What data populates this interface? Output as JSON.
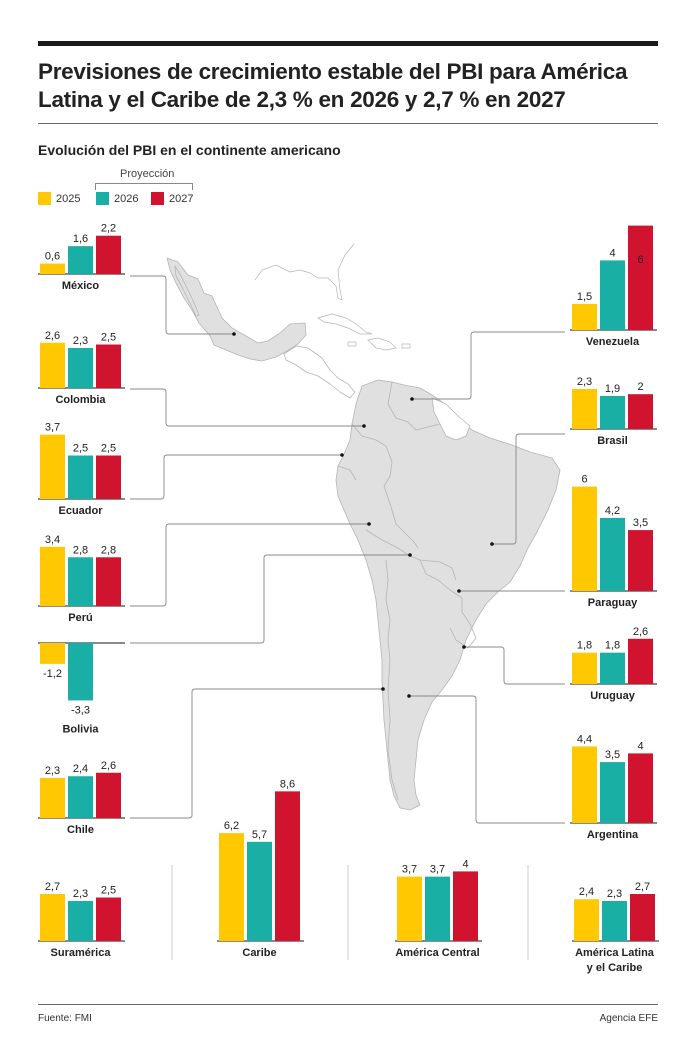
{
  "header": {
    "title_line1": "Previsiones de crecimiento estable del PBI para América",
    "title_line2": "Latina y el Caribe de 2,3 % en 2026 y 2,7 % en 2027",
    "subtitle": "Evolución del PBI en el continente americano"
  },
  "legend": {
    "projection_label": "Proyección",
    "items": [
      {
        "label": "2025",
        "color": "#FFC800"
      },
      {
        "label": "2026",
        "color": "#1AAFA5"
      },
      {
        "label": "2027",
        "color": "#D0142F"
      }
    ]
  },
  "footer": {
    "source": "Fuente: FMI",
    "agency": "Agencia EFE"
  },
  "chart_data": {
    "type": "bar",
    "title": "Evolución del PBI en el continente americano",
    "series_names": [
      "2025",
      "2026",
      "2027"
    ],
    "series_colors": [
      "#FFC800",
      "#1AAFA5",
      "#D0142F"
    ],
    "groups": [
      {
        "name": "México",
        "values": [
          0.6,
          1.6,
          2.2
        ],
        "labels": [
          "0,6",
          "1,6",
          "2,2"
        ]
      },
      {
        "name": "Colombia",
        "values": [
          2.6,
          2.3,
          2.5
        ],
        "labels": [
          "2,6",
          "2,3",
          "2,5"
        ]
      },
      {
        "name": "Ecuador",
        "values": [
          3.7,
          2.5,
          2.5
        ],
        "labels": [
          "3,7",
          "2,5",
          "2,5"
        ]
      },
      {
        "name": "Perú",
        "values": [
          3.4,
          2.8,
          2.8
        ],
        "labels": [
          "3,4",
          "2,8",
          "2,8"
        ]
      },
      {
        "name": "Bolivia",
        "values": [
          -1.2,
          -3.3,
          null
        ],
        "labels": [
          "-1,2",
          "-3,3",
          ""
        ]
      },
      {
        "name": "Chile",
        "values": [
          2.3,
          2.4,
          2.6
        ],
        "labels": [
          "2,3",
          "2,4",
          "2,6"
        ]
      },
      {
        "name": "Suramérica",
        "values": [
          2.7,
          2.3,
          2.5
        ],
        "labels": [
          "2,7",
          "2,3",
          "2,5"
        ]
      },
      {
        "name": "Caribe",
        "values": [
          6.2,
          5.7,
          8.6
        ],
        "labels": [
          "6,2",
          "5,7",
          "8,6"
        ]
      },
      {
        "name": "América Central",
        "values": [
          3.7,
          3.7,
          4
        ],
        "labels": [
          "3,7",
          "3,7",
          "4"
        ]
      },
      {
        "name": "América Latina y el Caribe",
        "name_lines": [
          "América Latina",
          "y el Caribe"
        ],
        "values": [
          2.4,
          2.3,
          2.7
        ],
        "labels": [
          "2,4",
          "2,3",
          "2,7"
        ]
      },
      {
        "name": "Venezuela",
        "values": [
          1.5,
          4,
          6
        ],
        "labels": [
          "1,5",
          "4",
          "6"
        ]
      },
      {
        "name": "Brasil",
        "values": [
          2.3,
          1.9,
          2
        ],
        "labels": [
          "2,3",
          "1,9",
          "2"
        ]
      },
      {
        "name": "Paraguay",
        "values": [
          6,
          4.2,
          3.5
        ],
        "labels": [
          "6",
          "4,2",
          "3,5"
        ]
      },
      {
        "name": "Uruguay",
        "values": [
          1.8,
          1.8,
          2.6
        ],
        "labels": [
          "1,8",
          "1,8",
          "2,6"
        ]
      },
      {
        "name": "Argentina",
        "values": [
          4.4,
          3.5,
          4
        ],
        "labels": [
          "4,4",
          "3,5",
          "4"
        ]
      }
    ]
  }
}
